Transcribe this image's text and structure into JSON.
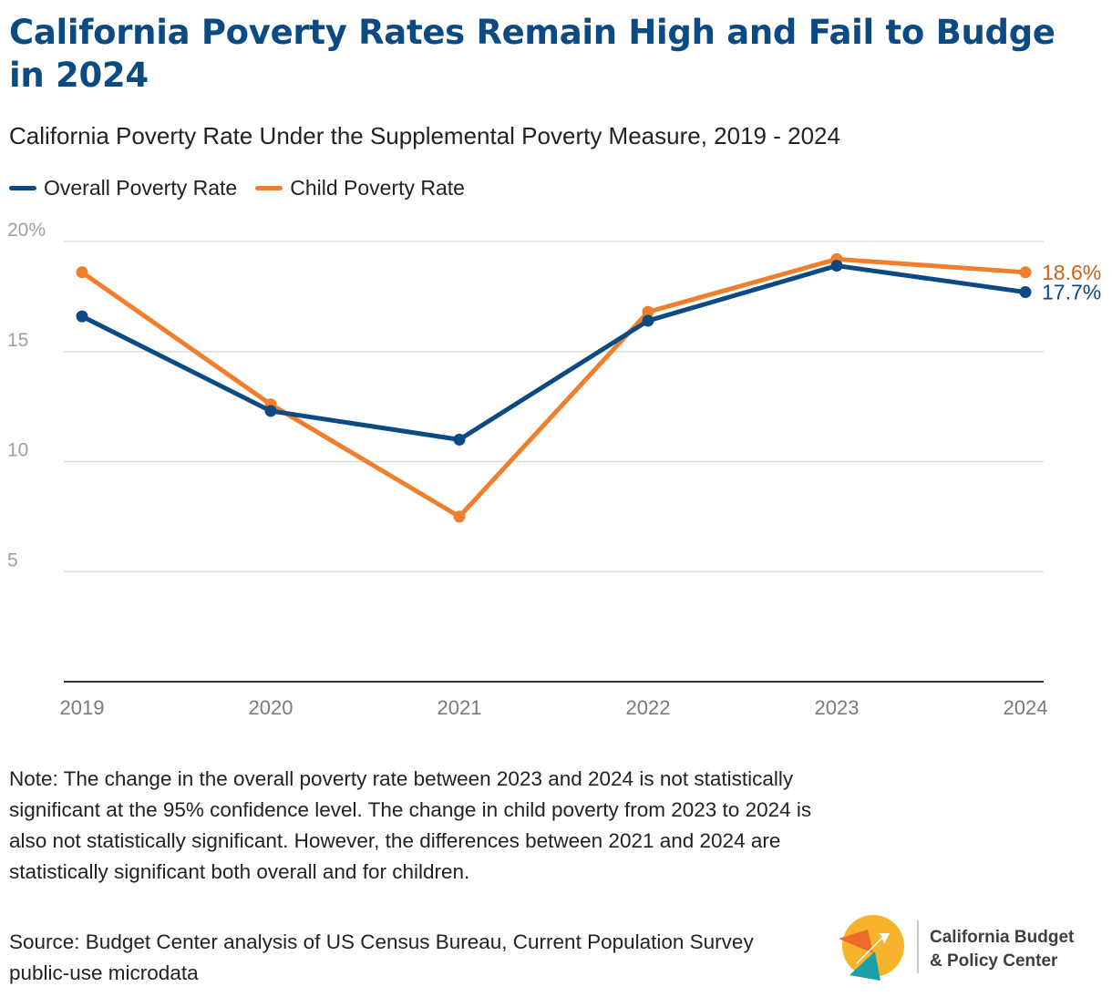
{
  "title": "California Poverty Rates Remain High and Fail to Budge in 2024",
  "subtitle": "California Poverty Rate Under the Supplemental Poverty Measure, 2019 - 2024",
  "legend": [
    {
      "name": "Overall Poverty Rate",
      "color": "#0b4a83"
    },
    {
      "name": "Child Poverty Rate",
      "color": "#f07f2d"
    }
  ],
  "chart_data": {
    "type": "line",
    "x": [
      "2019",
      "2020",
      "2021",
      "2022",
      "2023",
      "2024"
    ],
    "series": [
      {
        "name": "Overall Poverty Rate",
        "color": "#0b4a83",
        "label_color": "#0b4a83",
        "values": [
          16.6,
          12.3,
          11.0,
          16.4,
          18.9,
          17.7
        ],
        "end_label": "17.7%"
      },
      {
        "name": "Child Poverty Rate",
        "color": "#f07f2d",
        "label_color": "#c8631a",
        "values": [
          18.6,
          12.6,
          7.5,
          16.8,
          19.2,
          18.6
        ],
        "end_label": "18.6%"
      }
    ],
    "y_ticks": [
      {
        "value": 20,
        "label": "20%"
      },
      {
        "value": 15,
        "label": "15"
      },
      {
        "value": 10,
        "label": "10"
      },
      {
        "value": 5,
        "label": "5"
      }
    ],
    "ylim": [
      0,
      20
    ],
    "grid": true,
    "legend_position": "top-left",
    "xlabel": "",
    "ylabel": ""
  },
  "note": "Note: The change in the overall poverty rate between 2023 and 2024 is not statistically significant at the 95% confidence level. The change in child poverty from 2023 to 2024 is also not statistically significant. However, the differences between 2021 and 2024 are statistically significant both overall and for children.",
  "source": "Source: Budget Center analysis of US Census Bureau, Current Population Survey public-use microdata",
  "logo": {
    "line1": "California Budget",
    "line2": "& Policy Center",
    "icon": "cbpc-logo-icon"
  }
}
